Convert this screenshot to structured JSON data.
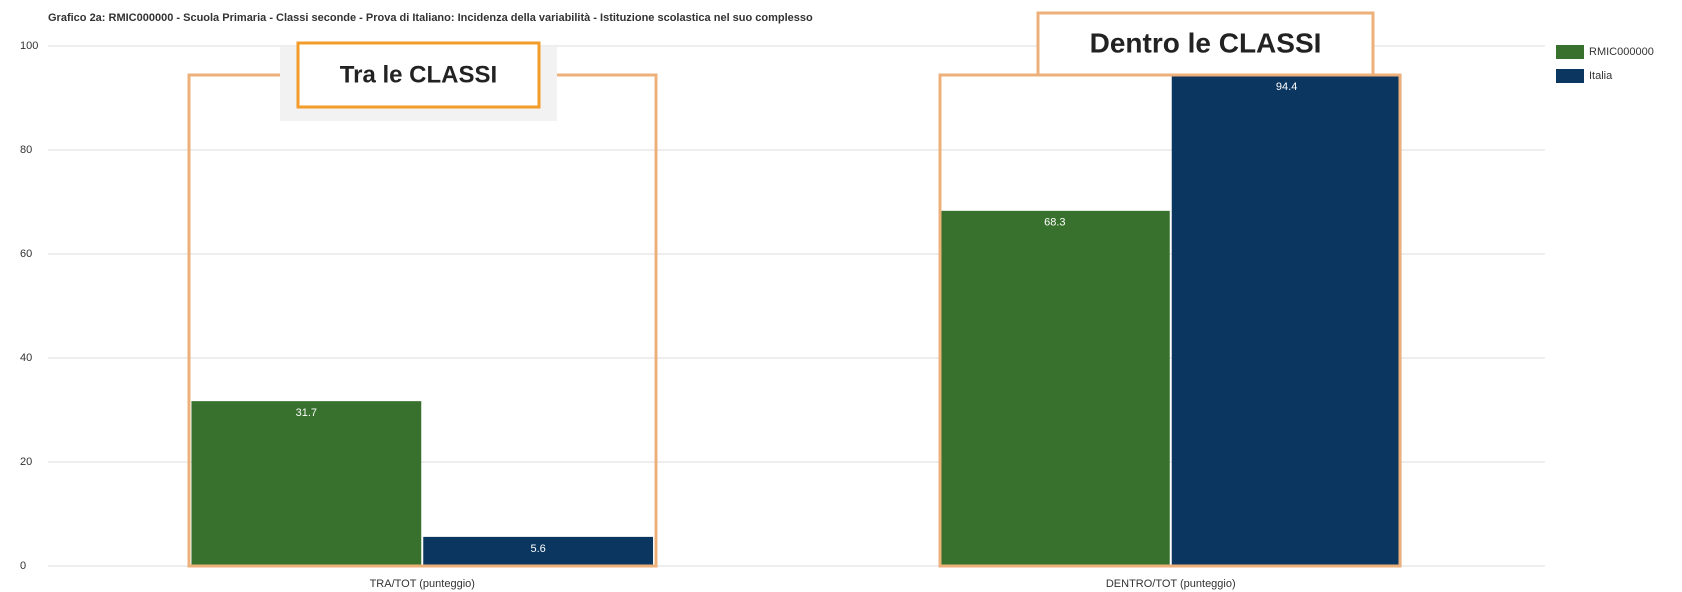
{
  "chart_data": {
    "type": "bar",
    "title": "Grafico 2a: RMIC000000 - Scuola Primaria - Classi seconde - Prova di Italiano: Incidenza della variabilità - Istituzione scolastica nel suo complesso",
    "categories": [
      "TRA/TOT (punteggio)",
      "DENTRO/TOT (punteggio)"
    ],
    "series": [
      {
        "name": "RMIC000000",
        "color": "#38702d",
        "values": [
          31.7,
          68.3
        ]
      },
      {
        "name": "Italia",
        "color": "#0b3660",
        "values": [
          5.6,
          94.4
        ]
      }
    ],
    "annotations": [
      "Tra le CLASSI",
      "Dentro le CLASSI"
    ],
    "ylim": [
      0,
      100
    ],
    "yticks": [
      0,
      20,
      40,
      60,
      80,
      100
    ],
    "grid": true,
    "legend": "right"
  }
}
